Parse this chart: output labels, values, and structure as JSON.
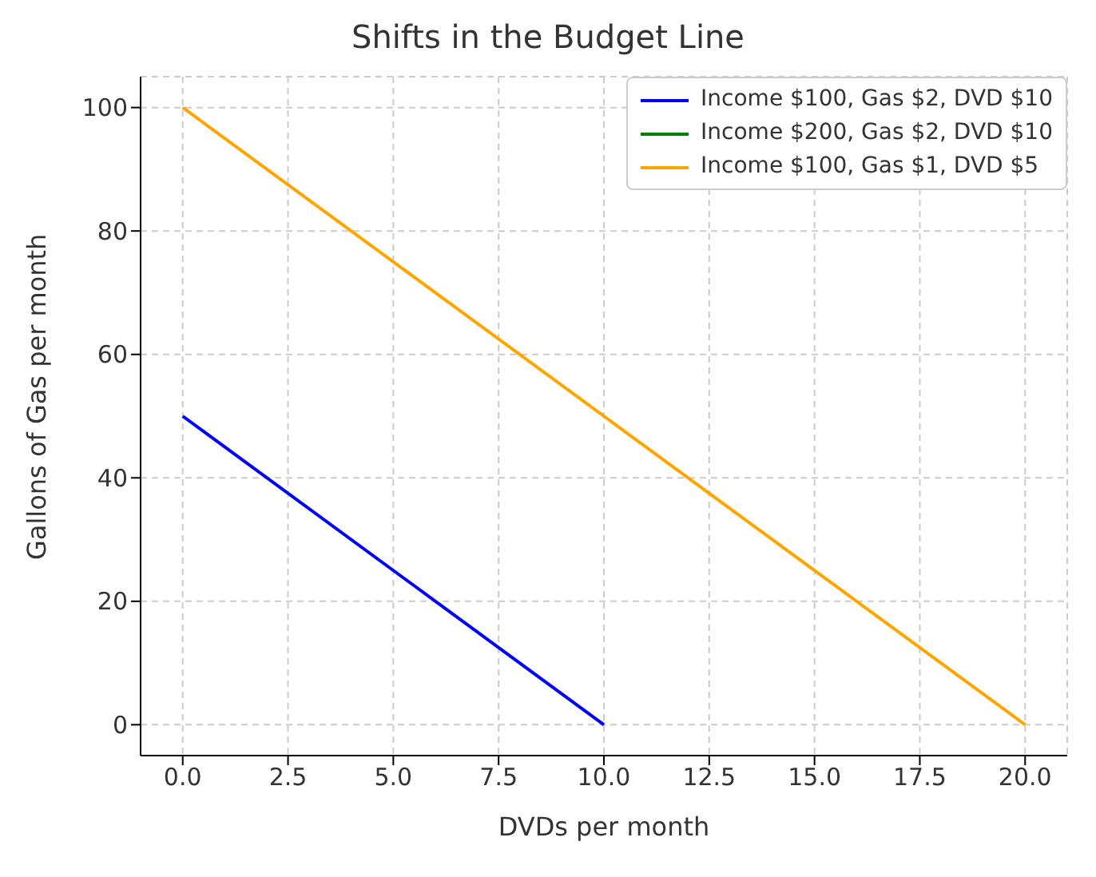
{
  "chart_data": {
    "type": "line",
    "title": "Shifts in the Budget Line",
    "xlabel": "DVDs per month",
    "ylabel": "Gallons of Gas per month",
    "series": [
      {
        "name": "Income $100, Gas $2, DVD $10",
        "color": "#0000ff",
        "x": [
          0,
          10
        ],
        "values": [
          50,
          0
        ]
      },
      {
        "name": "Income $200, Gas $2, DVD $10",
        "color": "#008000"
      },
      {
        "name": "Income $100, Gas $1, DVD $5",
        "color": "#ffa500",
        "x": [
          0,
          20
        ],
        "values": [
          100,
          0
        ]
      }
    ],
    "xlim": [
      -1,
      21
    ],
    "xticks": [
      {
        "value": 0,
        "label": "0.0"
      },
      {
        "value": 2.5,
        "label": "2.5"
      },
      {
        "value": 5,
        "label": "5.0"
      },
      {
        "value": 7.5,
        "label": "7.5"
      },
      {
        "value": 10,
        "label": "10.0"
      },
      {
        "value": 12.5,
        "label": "12.5"
      },
      {
        "value": 15,
        "label": "15.0"
      },
      {
        "value": 17.5,
        "label": "17.5"
      },
      {
        "value": 20,
        "label": "20.0"
      }
    ],
    "ylim": [
      -5,
      105
    ],
    "yticks": [
      0,
      20,
      40,
      60,
      80,
      100
    ],
    "grid": true,
    "legend": "top right",
    "marker": "none",
    "line_style": "solid"
  }
}
